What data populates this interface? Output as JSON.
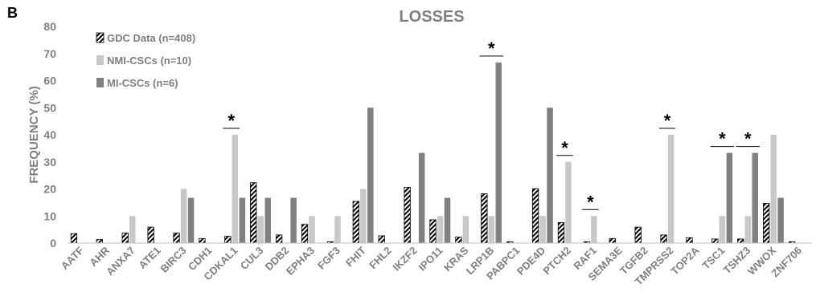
{
  "panel_label": "B",
  "chart_data": {
    "type": "bar",
    "title": "LOSSES",
    "xlabel": "",
    "ylabel": "FREQUENCY (%)",
    "ylim": [
      0,
      80
    ],
    "yticks": [
      0,
      10,
      20,
      30,
      40,
      50,
      60,
      70,
      80
    ],
    "grid": false,
    "legend_position": "top-left",
    "categories": [
      "AATF",
      "AHR",
      "ANXA7",
      "ATE1",
      "BIRC3",
      "CDH1",
      "CDKAL1",
      "CUL3",
      "DDB2",
      "EPHA3",
      "FGF3",
      "FHIT",
      "FHL2",
      "IKZF2",
      "IPO11",
      "KRAS",
      "LRP1B",
      "PABPC1",
      "PDE4D",
      "PTCH2",
      "RAF1",
      "SEMA3E",
      "TGFB2",
      "TMPRSS2",
      "TOP2A",
      "TSC1",
      "TSHZ3",
      "WWOX",
      "ZNF706"
    ],
    "series": [
      {
        "name": "GDC Data (n=408)",
        "style": "hatched",
        "color": "#000000",
        "values": [
          3.5,
          1.3,
          3.7,
          5.9,
          3.7,
          1.7,
          2.5,
          22.3,
          3.0,
          6.9,
          0.5,
          15.4,
          2.7,
          20.6,
          8.6,
          2.2,
          18.2,
          0.5,
          20.1,
          7.6,
          0.5,
          1.7,
          5.9,
          3.0,
          2.0,
          1.5,
          1.5,
          14.7,
          0.5
        ]
      },
      {
        "name": "NMI-CSCs (n=10)",
        "style": "solid",
        "color": "#c8c8c8",
        "values": [
          0,
          0,
          10,
          0,
          20,
          0,
          40,
          10,
          0,
          10,
          10,
          20,
          0,
          0,
          10,
          10,
          10,
          0,
          10,
          30,
          10,
          0,
          0,
          40,
          0,
          10,
          10,
          40,
          0
        ]
      },
      {
        "name": "MI-CSCs (n=6)",
        "style": "solid",
        "color": "#808080",
        "values": [
          0,
          0,
          0,
          0,
          16.7,
          0,
          16.7,
          16.7,
          16.7,
          0,
          0,
          50,
          0,
          33.3,
          16.7,
          0,
          66.7,
          0,
          50,
          0,
          0,
          0,
          0,
          0,
          0,
          33.3,
          33.3,
          16.7,
          0
        ]
      }
    ],
    "annotations": [
      {
        "category": "CDKAL1",
        "text": "*",
        "span": [
          0,
          1
        ]
      },
      {
        "category": "LRP1B",
        "text": "*",
        "span": [
          0,
          2
        ]
      },
      {
        "category": "PTCH2",
        "text": "*",
        "span": [
          0,
          1
        ]
      },
      {
        "category": "RAF1",
        "text": "*",
        "span": [
          0,
          1
        ]
      },
      {
        "category": "TMPRSS2",
        "text": "*",
        "span": [
          0,
          1
        ]
      },
      {
        "category": "TSC1",
        "text": "*",
        "span": [
          0,
          2
        ]
      },
      {
        "category": "TSHZ3",
        "text": "*",
        "span": [
          0,
          2
        ]
      }
    ]
  }
}
